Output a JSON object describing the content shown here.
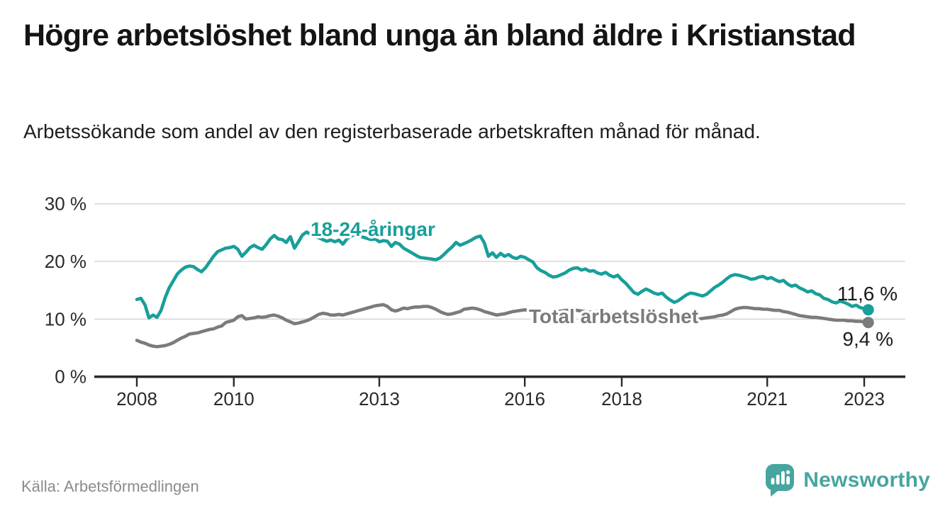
{
  "page": {
    "title": "Högre arbetslöshet bland unga än bland äldre i Kristianstad",
    "subtitle": "Arbetssökande som andel av den registerbaserade arbetskraften månad för månad.",
    "source": "Källa: Arbetsförmedlingen",
    "brand": {
      "name": "Newsworthy",
      "icon": "newsworthy-speech-bubble-bar-chart-icon"
    }
  },
  "colors": {
    "young_teal": "#189f9a",
    "total_gray": "#7b7b7b",
    "grid": "#d8d8d8",
    "axis": "#2a2a2a",
    "value_label": "#1a1a1a",
    "muted_text": "#8b8b8b",
    "brand_teal": "#47a59f"
  },
  "chart_data": {
    "type": "line",
    "title": "Högre arbetslöshet bland unga än bland äldre i Kristianstad",
    "subtitle": "Arbetssökande som andel av den registerbaserade arbetskraften månad för månad.",
    "x_unit": "month",
    "x_start": "2008-01",
    "x_end": "2023-02",
    "x_tick_years": [
      2008,
      2010,
      2013,
      2016,
      2018,
      2021,
      2023
    ],
    "y_ticks": [
      0,
      10,
      20,
      30
    ],
    "y_tick_suffix": " %",
    "ylim": [
      0,
      30
    ],
    "grid": "horizontal",
    "legend_position": "inline-labels",
    "series": [
      {
        "name": "18-24-åringar",
        "color": "#189f9a",
        "end_value": 11.6,
        "end_label": "11,6 %",
        "values": [
          13.4,
          13.6,
          12.5,
          10.2,
          10.7,
          10.3,
          11.5,
          13.7,
          15.4,
          16.6,
          17.8,
          18.5,
          19.0,
          19.2,
          19.1,
          18.6,
          18.2,
          18.9,
          19.9,
          20.9,
          21.7,
          22.0,
          22.3,
          22.4,
          22.6,
          22.1,
          20.9,
          21.6,
          22.4,
          22.8,
          22.4,
          22.1,
          22.9,
          23.9,
          24.5,
          23.9,
          23.8,
          23.3,
          24.3,
          22.3,
          23.4,
          24.6,
          25.1,
          24.7,
          24.4,
          24.1,
          23.8,
          23.5,
          23.7,
          23.4,
          23.7,
          23.0,
          23.9,
          24.4,
          24.7,
          24.4,
          24.2,
          24.0,
          23.8,
          23.9,
          23.4,
          23.6,
          23.5,
          22.6,
          23.3,
          23.0,
          22.3,
          21.9,
          21.5,
          21.1,
          20.7,
          20.6,
          20.5,
          20.4,
          20.3,
          20.6,
          21.2,
          21.9,
          22.5,
          23.3,
          22.8,
          23.1,
          23.4,
          23.8,
          24.2,
          24.4,
          23.2,
          20.9,
          21.5,
          20.7,
          21.4,
          20.9,
          21.2,
          20.7,
          20.5,
          20.9,
          20.7,
          20.3,
          19.9,
          18.9,
          18.4,
          18.1,
          17.6,
          17.3,
          17.4,
          17.7,
          18.0,
          18.5,
          18.8,
          18.9,
          18.5,
          18.7,
          18.3,
          18.4,
          18.0,
          17.8,
          18.1,
          17.6,
          17.3,
          17.6,
          16.8,
          16.2,
          15.4,
          14.6,
          14.3,
          14.8,
          15.2,
          14.9,
          14.5,
          14.3,
          14.5,
          13.8,
          13.3,
          12.9,
          13.2,
          13.7,
          14.2,
          14.5,
          14.4,
          14.2,
          14.0,
          14.3,
          14.9,
          15.5,
          15.9,
          16.4,
          17.0,
          17.5,
          17.7,
          17.6,
          17.4,
          17.2,
          16.9,
          17.0,
          17.3,
          17.4,
          17.0,
          17.2,
          16.8,
          16.5,
          16.7,
          16.1,
          15.7,
          15.9,
          15.4,
          15.1,
          14.7,
          14.9,
          14.4,
          14.2,
          13.6,
          13.4,
          13.0,
          12.8,
          13.1,
          12.9,
          12.6,
          12.2,
          12.4,
          12.0,
          11.8,
          11.6
        ]
      },
      {
        "name": "Total arbetslöshet",
        "color": "#7b7b7b",
        "end_value": 9.4,
        "end_label": "9,4 %",
        "values": [
          6.3,
          6.0,
          5.8,
          5.5,
          5.3,
          5.2,
          5.3,
          5.4,
          5.6,
          5.9,
          6.3,
          6.7,
          7.0,
          7.4,
          7.5,
          7.6,
          7.8,
          8.0,
          8.2,
          8.3,
          8.6,
          8.8,
          9.4,
          9.6,
          9.8,
          10.4,
          10.6,
          10.0,
          10.1,
          10.2,
          10.4,
          10.3,
          10.4,
          10.6,
          10.7,
          10.5,
          10.2,
          9.8,
          9.5,
          9.2,
          9.3,
          9.5,
          9.7,
          10.0,
          10.4,
          10.8,
          11.0,
          10.9,
          10.7,
          10.7,
          10.8,
          10.7,
          10.9,
          11.1,
          11.3,
          11.5,
          11.7,
          11.9,
          12.1,
          12.3,
          12.4,
          12.5,
          12.2,
          11.6,
          11.4,
          11.6,
          11.9,
          11.8,
          12.0,
          12.1,
          12.1,
          12.2,
          12.2,
          12.0,
          11.7,
          11.3,
          11.0,
          10.8,
          10.9,
          11.1,
          11.3,
          11.7,
          11.8,
          11.9,
          11.8,
          11.6,
          11.3,
          11.1,
          10.9,
          10.7,
          10.8,
          10.9,
          11.1,
          11.3,
          11.4,
          11.5,
          11.6,
          11.5,
          11.4,
          11.2,
          11.1,
          11.0,
          11.1,
          11.2,
          11.3,
          11.4,
          11.5,
          11.5,
          11.6,
          11.5,
          11.4,
          11.3,
          11.2,
          11.2,
          11.3,
          11.2,
          11.1,
          11.0,
          10.9,
          10.9,
          10.8,
          10.6,
          10.4,
          10.2,
          10.1,
          10.2,
          10.3,
          10.2,
          10.1,
          10.0,
          9.9,
          9.9,
          9.9,
          9.9,
          9.8,
          9.8,
          9.8,
          9.9,
          10.0,
          10.0,
          10.1,
          10.2,
          10.3,
          10.4,
          10.6,
          10.7,
          10.9,
          11.3,
          11.7,
          11.9,
          12.0,
          12.0,
          11.9,
          11.8,
          11.8,
          11.7,
          11.7,
          11.6,
          11.5,
          11.5,
          11.3,
          11.2,
          11.0,
          10.8,
          10.6,
          10.5,
          10.4,
          10.3,
          10.3,
          10.2,
          10.1,
          10.0,
          9.9,
          9.8,
          9.8,
          9.8,
          9.7,
          9.7,
          9.6,
          9.6,
          9.5,
          9.4
        ]
      }
    ]
  }
}
